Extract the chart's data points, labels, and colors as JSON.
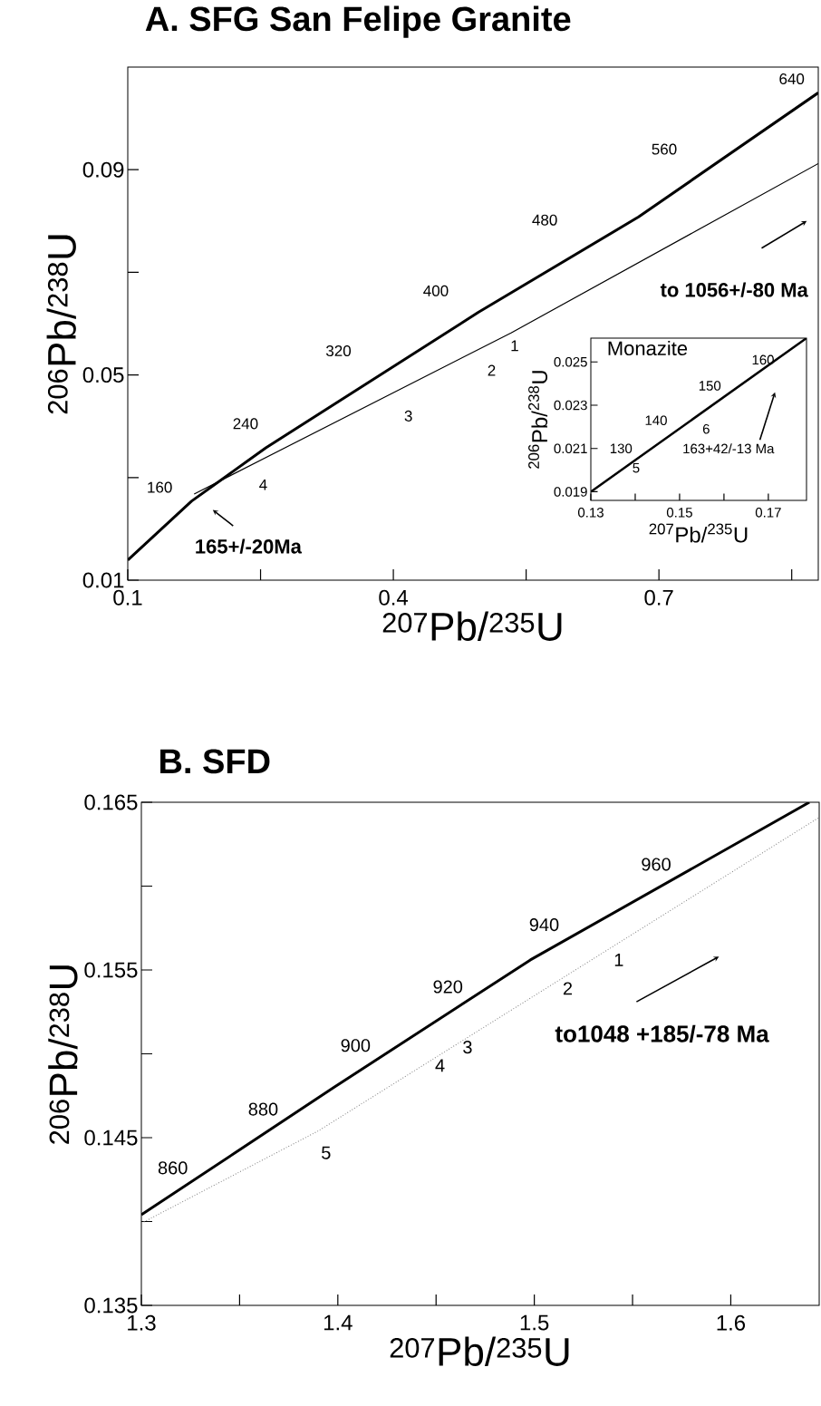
{
  "chart_data": [
    {
      "type": "line",
      "title": "A. SFG San Felipe Granite",
      "xlabel": "$^{207}$Pb/$^{235}$U",
      "ylabel": "$^{206}$Pb/$^{238}$U",
      "xlim": [
        0.1,
        0.88
      ],
      "ylim": [
        0.01,
        0.11
      ],
      "xticks": [
        0.1,
        {
          "value": 0.25,
          "label": null
        },
        0.4,
        {
          "value": 0.55,
          "label": null
        },
        0.7,
        {
          "value": 0.85,
          "label": null
        }
      ],
      "yticks": [
        0.01,
        {
          "value": 0.03,
          "label": null
        },
        0.05,
        {
          "value": 0.07,
          "label": null
        },
        0.09
      ],
      "series": [
        {
          "color": "#000000",
          "x": [
            0.1,
            0.172,
            0.256,
            0.376,
            0.496,
            0.677,
            0.88
          ],
          "values": [
            0.0139,
            0.0254,
            0.0358,
            0.049,
            0.0622,
            0.0808,
            0.105
          ]
        },
        {
          "color": "#000000",
          "x": [
            0.175,
            0.533,
            0.88
          ],
          "values": [
            0.0268,
            0.0582,
            0.0912
          ]
        }
      ],
      "annotations": [
        "160",
        "240",
        "320",
        "400",
        "480",
        "560",
        "640",
        "1",
        "2",
        "3",
        "4",
        "165+/-20Ma",
        "to 1056+/-80 Ma"
      ]
    },
    {
      "type": "line",
      "title": "Monazite",
      "xlabel": "$^{207}$Pb/$^{235}$U",
      "ylabel": "$^{206}$Pb/$^{238}$U",
      "xlim": [
        0.13,
        0.1786
      ],
      "ylim": [
        0.0186,
        0.0261
      ],
      "xticks": [
        0.13,
        {
          "value": 0.14,
          "label": null
        },
        0.15,
        {
          "value": 0.16,
          "label": null
        },
        0.17
      ],
      "yticks": [
        0.019,
        0.021,
        0.023,
        0.025
      ],
      "series": [
        {
          "color": "#000000",
          "x": [
            0.13,
            0.1786
          ],
          "values": [
            0.019,
            0.0261
          ]
        }
      ],
      "annotations": [
        "130",
        "140",
        "150",
        "160",
        "5",
        "6",
        "163+42/-13 Ma"
      ]
    },
    {
      "type": "line",
      "title": "B. SFD",
      "xlabel": "$^{207}$Pb/$^{235}$U",
      "ylabel": "$^{206}$Pb/$^{238}$U",
      "xlim": [
        1.3,
        1.645
      ],
      "ylim": [
        0.135,
        0.165
      ],
      "xticks": [
        1.3,
        {
          "value": 1.35,
          "label": null
        },
        1.4,
        {
          "value": 1.45,
          "label": null
        },
        1.5,
        {
          "value": 1.55,
          "label": null
        },
        1.6
      ],
      "yticks": [
        0.135,
        {
          "value": 0.14,
          "label": null
        },
        0.145,
        {
          "value": 0.15,
          "label": null
        },
        0.155,
        {
          "value": 0.16,
          "label": null
        },
        0.165
      ],
      "series": [
        {
          "color": "#000000",
          "x": [
            1.3,
            1.398,
            1.498,
            1.64
          ],
          "values": [
            0.1404,
            0.148,
            0.1556,
            0.165
          ]
        },
        {
          "color": "#808080",
          "line_style": "dotted",
          "x": [
            1.3,
            1.39,
            1.645
          ],
          "values": [
            0.1399,
            0.1454,
            0.1641
          ]
        }
      ],
      "annotations": [
        "860",
        "880",
        "900",
        "920",
        "940",
        "960",
        "1",
        "2",
        "3",
        "4",
        "5",
        "to1048 +185/-78 Ma"
      ]
    }
  ]
}
